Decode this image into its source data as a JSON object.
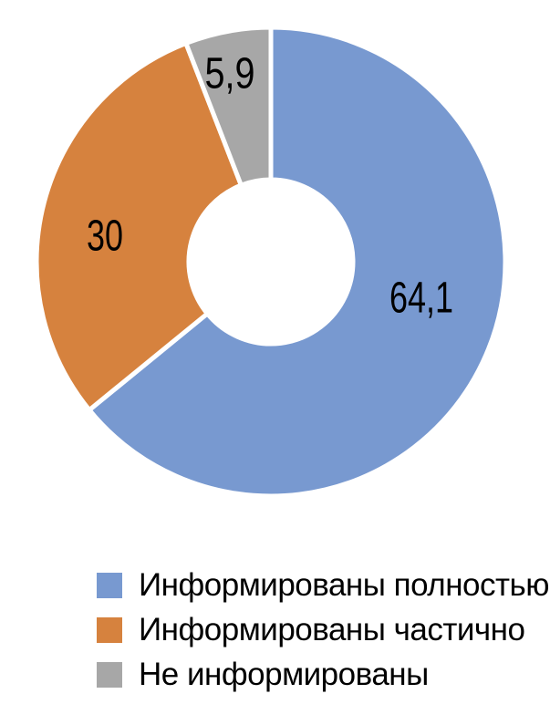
{
  "chart_data": {
    "type": "pie",
    "subtype": "donut",
    "title": "",
    "legend_position": "bottom",
    "start_angle_deg": 0,
    "direction": "clockwise",
    "hole_ratio": 0.35,
    "background_color": "#ffffff",
    "label_color": "#000000",
    "separator_color": "#ffffff",
    "slices": [
      {
        "label": "Информированы полностью",
        "value": 64.1,
        "value_label": "64,1",
        "color": "#7899D0"
      },
      {
        "label": "Информированы частично",
        "value": 30,
        "value_label": "30",
        "color": "#D6823E"
      },
      {
        "label": "Не информированы",
        "value": 5.9,
        "value_label": "5,9",
        "color": "#A7A7A7"
      }
    ]
  }
}
